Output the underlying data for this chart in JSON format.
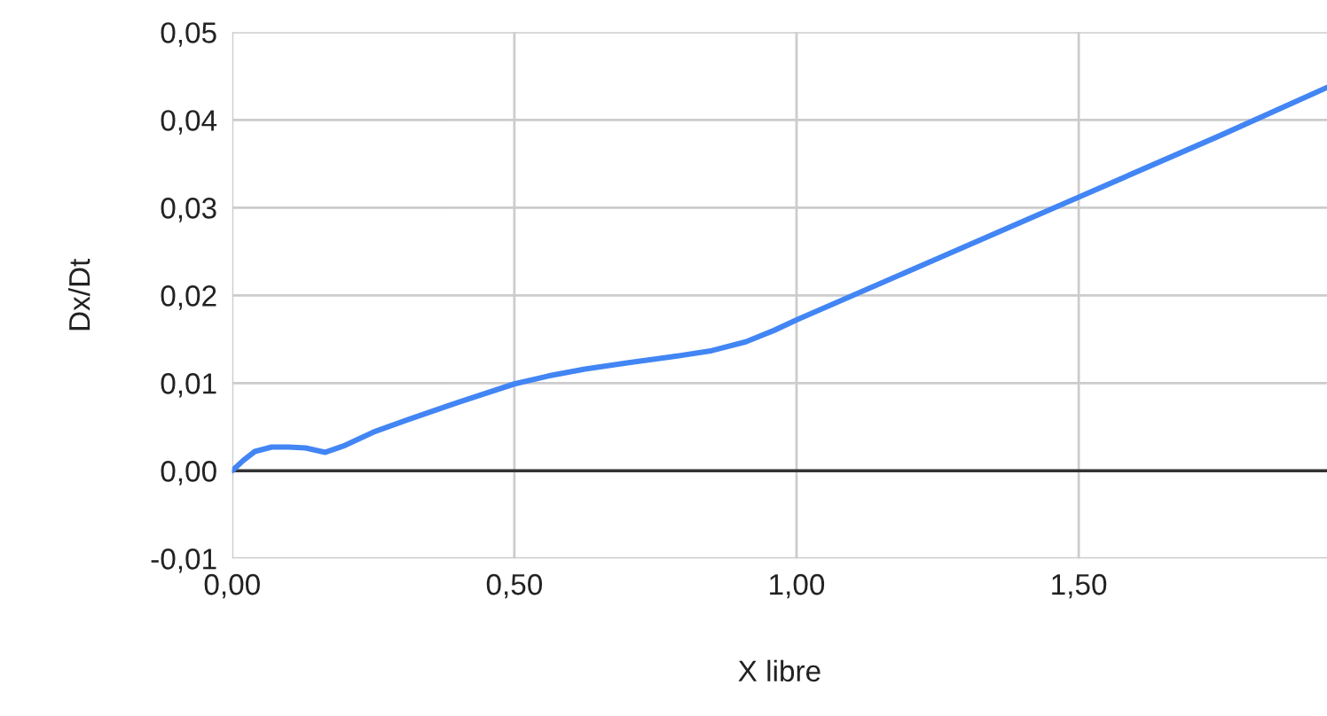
{
  "chart_data": {
    "type": "line",
    "xlabel": "X libre",
    "ylabel": "Dx/Dt",
    "series": [
      {
        "color": "#4285f4",
        "x": [
          0,
          0.02,
          0.04,
          0.07,
          0.1,
          0.13,
          0.165,
          0.2,
          0.25,
          0.31,
          0.4,
          0.5,
          0.56,
          0.625,
          0.7,
          0.78,
          0.85,
          0.91,
          0.96,
          1.0,
          1.25,
          1.5,
          1.75,
          1.94
        ],
        "values": [
          0,
          0.0012,
          0.0022,
          0.0027,
          0.0027,
          0.0026,
          0.0021,
          0.0029,
          0.0044,
          0.0058,
          0.0078,
          0.0099,
          0.0108,
          0.0116,
          0.0123,
          0.013,
          0.0137,
          0.0147,
          0.016,
          0.0172,
          0.0242,
          0.0312,
          0.0382,
          0.0437
        ]
      }
    ],
    "xlim": [
      0,
      1.94
    ],
    "ylim": [
      -0.01,
      0.05
    ],
    "xticks": [
      {
        "value": 0,
        "label": "0,00"
      },
      {
        "value": 0.5,
        "label": "0,50"
      },
      {
        "value": 1.0,
        "label": "1,00"
      },
      {
        "value": 1.5,
        "label": "1,50"
      }
    ],
    "yticks": [
      {
        "value": -0.01,
        "label": "-0,01"
      },
      {
        "value": 0,
        "label": "0,00"
      },
      {
        "value": 0.01,
        "label": "0,01"
      },
      {
        "value": 0.02,
        "label": "0,02"
      },
      {
        "value": 0.03,
        "label": "0,03"
      },
      {
        "value": 0.04,
        "label": "0,04"
      },
      {
        "value": 0.05,
        "label": "0,05"
      }
    ],
    "grid": true,
    "marker": "none",
    "line_style": "solid",
    "ref_lines": [
      {
        "axis": "y",
        "value": 0,
        "color": "#333333"
      }
    ]
  }
}
